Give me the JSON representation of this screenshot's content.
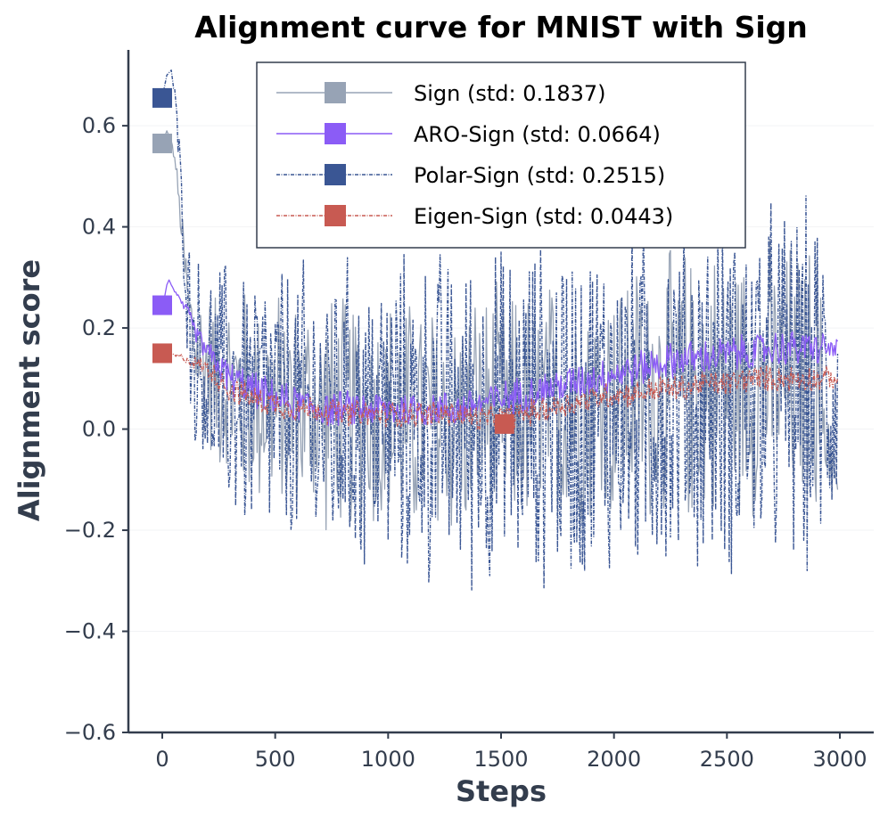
{
  "chart_data": {
    "type": "line",
    "title": "Alignment curve for MNIST with Sign",
    "xlabel": "Steps",
    "ylabel": "Alignment score",
    "xlim": [
      -150,
      3150
    ],
    "ylim": [
      -0.6,
      0.75
    ],
    "x_ticks": [
      0,
      500,
      1000,
      1500,
      2000,
      2500,
      3000
    ],
    "x_tick_labels": [
      "0",
      "500",
      "1000",
      "1500",
      "2000",
      "2500",
      "3000"
    ],
    "y_ticks": [
      0.6,
      0.4,
      0.2,
      0.0,
      -0.2,
      -0.4,
      -0.6
    ],
    "y_tick_labels": [
      "0.6",
      "0.4",
      "0.2",
      "0.0",
      "−0.2",
      "−0.4",
      "−0.6"
    ],
    "grid": true,
    "legend_position": "top-center",
    "series": [
      {
        "name": "Sign (std: 0.1837)",
        "color": "#97a3b5",
        "style": "solid",
        "marker_x": 0,
        "marker_y": 0.565,
        "x": [
          0,
          20,
          40,
          60,
          80,
          100,
          120,
          150,
          200,
          250,
          300,
          350,
          400,
          450,
          500,
          600,
          700,
          800,
          900,
          1000,
          1100,
          1200,
          1300,
          1400,
          1500,
          1600,
          1700,
          1800,
          1900,
          2000,
          2100,
          2200,
          2300,
          2400,
          2500,
          2600,
          2700,
          2800,
          2900,
          2990
        ],
        "y": [
          0.565,
          0.59,
          0.57,
          0.52,
          0.42,
          0.32,
          0.22,
          0.16,
          0.12,
          0.1,
          0.08,
          0.07,
          0.06,
          0.06,
          0.05,
          0.04,
          0.04,
          0.03,
          0.03,
          0.02,
          0.02,
          0.02,
          0.02,
          0.03,
          0.03,
          0.03,
          0.04,
          0.05,
          0.05,
          0.06,
          0.07,
          0.08,
          0.08,
          0.09,
          0.09,
          0.1,
          0.1,
          0.1,
          0.1,
          -0.12
        ],
        "noise_amplitude": [
          0,
          0,
          0,
          0.02,
          0.04,
          0.08,
          0.12,
          0.16,
          0.18,
          0.2,
          0.22,
          0.24,
          0.24,
          0.24,
          0.25,
          0.25,
          0.26,
          0.26,
          0.26,
          0.27,
          0.27,
          0.27,
          0.27,
          0.27,
          0.27,
          0.27,
          0.28,
          0.28,
          0.28,
          0.28,
          0.29,
          0.29,
          0.3,
          0.3,
          0.3,
          0.3,
          0.3,
          0.3,
          0.3,
          0
        ]
      },
      {
        "name": "ARO-Sign (std: 0.0664)",
        "color": "#8b5cf6",
        "style": "solid",
        "marker_x": 0,
        "marker_y": 0.245,
        "x": [
          0,
          10,
          20,
          30,
          40,
          60,
          80,
          100,
          120,
          150,
          200,
          300,
          400,
          500,
          600,
          700,
          800,
          900,
          1000,
          1100,
          1200,
          1300,
          1400,
          1500,
          1600,
          1700,
          1800,
          1900,
          2000,
          2100,
          2200,
          2300,
          2400,
          2500,
          2600,
          2700,
          2800,
          2900,
          2990
        ],
        "y": [
          0.245,
          0.26,
          0.285,
          0.295,
          0.285,
          0.27,
          0.25,
          0.24,
          0.22,
          0.19,
          0.15,
          0.1,
          0.08,
          0.06,
          0.05,
          0.04,
          0.04,
          0.04,
          0.04,
          0.04,
          0.04,
          0.04,
          0.05,
          0.06,
          0.07,
          0.08,
          0.09,
          0.1,
          0.11,
          0.12,
          0.13,
          0.14,
          0.14,
          0.15,
          0.15,
          0.16,
          0.16,
          0.16,
          0.16
        ],
        "noise_amplitude": [
          0,
          0,
          0,
          0,
          0,
          0.005,
          0.01,
          0.015,
          0.02,
          0.02,
          0.03,
          0.04,
          0.04,
          0.04,
          0.04,
          0.04,
          0.04,
          0.04,
          0.04,
          0.04,
          0.04,
          0.04,
          0.04,
          0.04,
          0.04,
          0.04,
          0.04,
          0.04,
          0.04,
          0.04,
          0.04,
          0.04,
          0.04,
          0.04,
          0.04,
          0.04,
          0.04,
          0.04,
          0.02
        ]
      },
      {
        "name": "Polar-Sign (std: 0.2515)",
        "color": "#3a5694",
        "style": "dashdot",
        "marker_x": 0,
        "marker_y": 0.655,
        "x": [
          0,
          20,
          40,
          60,
          80,
          100,
          120,
          150,
          200,
          250,
          300,
          350,
          400,
          450,
          500,
          600,
          700,
          800,
          900,
          1000,
          1100,
          1200,
          1300,
          1400,
          1500,
          1600,
          1700,
          1800,
          1900,
          2000,
          2100,
          2200,
          2300,
          2400,
          2500,
          2600,
          2700,
          2800,
          2900,
          2990
        ],
        "y": [
          0.655,
          0.7,
          0.71,
          0.64,
          0.5,
          0.35,
          0.22,
          0.15,
          0.1,
          0.08,
          0.07,
          0.06,
          0.05,
          0.05,
          0.04,
          0.03,
          0.03,
          0.02,
          0.02,
          0.02,
          0.02,
          0.02,
          0.02,
          0.02,
          0.02,
          0.03,
          0.03,
          0.04,
          0.04,
          0.05,
          0.06,
          0.06,
          0.07,
          0.07,
          0.08,
          0.08,
          0.08,
          0.08,
          0.08,
          0.08
        ],
        "noise_amplitude": [
          0,
          0,
          0,
          0.03,
          0.06,
          0.12,
          0.18,
          0.22,
          0.26,
          0.28,
          0.3,
          0.32,
          0.32,
          0.32,
          0.33,
          0.33,
          0.34,
          0.35,
          0.35,
          0.36,
          0.36,
          0.37,
          0.37,
          0.38,
          0.38,
          0.38,
          0.38,
          0.39,
          0.39,
          0.39,
          0.4,
          0.4,
          0.4,
          0.4,
          0.41,
          0.41,
          0.41,
          0.41,
          0.41,
          0.3
        ]
      },
      {
        "name": "Eigen-Sign (std: 0.0443)",
        "color": "#c85a52",
        "style": "dashdot",
        "marker_x": 0,
        "marker_y": 0.15,
        "x": [
          0,
          20,
          40,
          60,
          100,
          150,
          200,
          250,
          300,
          400,
          500,
          600,
          700,
          800,
          900,
          1000,
          1100,
          1200,
          1300,
          1400,
          1500,
          1600,
          1700,
          1800,
          1900,
          2000,
          2100,
          2200,
          2300,
          2400,
          2500,
          2600,
          2700,
          2800,
          2900,
          2990
        ],
        "y": [
          0.15,
          0.155,
          0.15,
          0.145,
          0.14,
          0.13,
          0.12,
          0.1,
          0.08,
          0.06,
          0.05,
          0.04,
          0.04,
          0.03,
          0.03,
          0.03,
          0.03,
          0.03,
          0.03,
          0.02,
          0.02,
          0.03,
          0.04,
          0.05,
          0.06,
          0.07,
          0.07,
          0.08,
          0.08,
          0.09,
          0.09,
          0.1,
          0.1,
          0.1,
          0.1,
          0.1
        ],
        "noise_amplitude": [
          0,
          0,
          0,
          0.005,
          0.01,
          0.015,
          0.02,
          0.03,
          0.03,
          0.03,
          0.03,
          0.03,
          0.03,
          0.03,
          0.03,
          0.03,
          0.03,
          0.03,
          0.03,
          0.03,
          0.03,
          0.03,
          0.03,
          0.03,
          0.03,
          0.03,
          0.03,
          0.03,
          0.03,
          0.03,
          0.03,
          0.03,
          0.03,
          0.03,
          0.03,
          0.02
        ]
      }
    ],
    "annotations": [
      {
        "label": "Eigen-Sign marker near step 1500",
        "x": 1515,
        "y": 0.01,
        "color": "#c85a52"
      }
    ]
  }
}
